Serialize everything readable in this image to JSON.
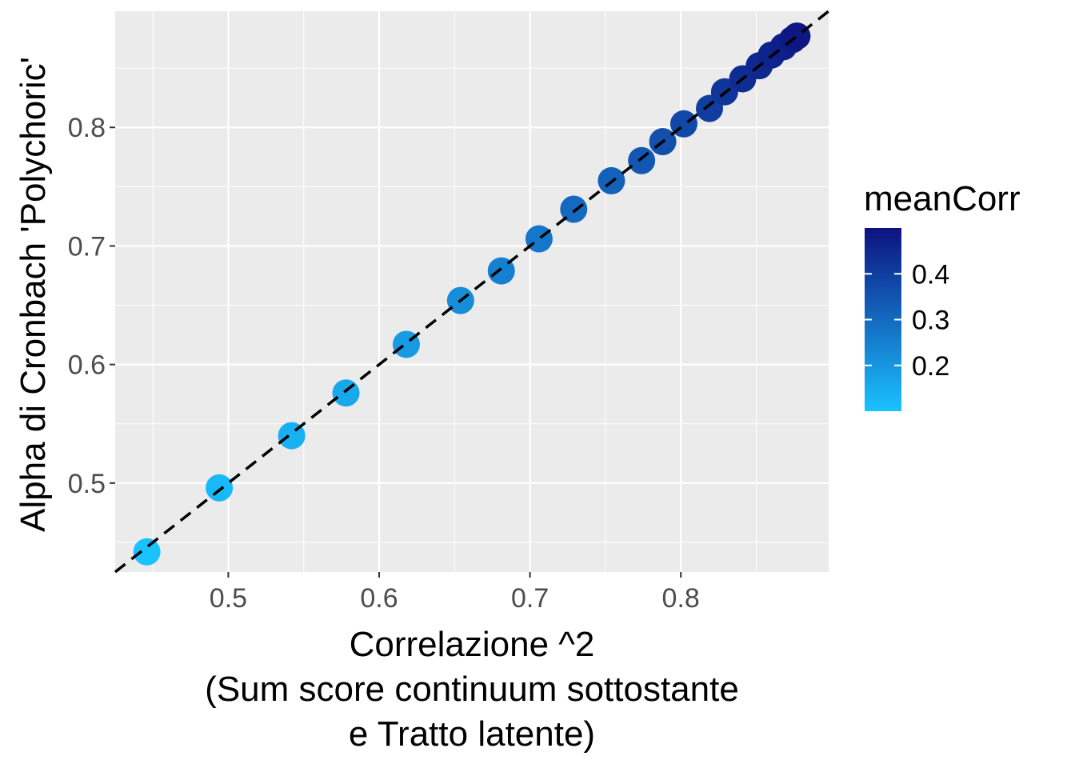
{
  "chart_data": {
    "type": "scatter",
    "title": "",
    "xlabel_lines": [
      "Correlazione ^2",
      "(Sum score continuum sottostante",
      "e Tratto latente)"
    ],
    "ylabel": "Alpha di Cronbach 'Polychoric'",
    "xlim": [
      0.425,
      0.898
    ],
    "ylim": [
      0.425,
      0.898
    ],
    "x_ticks": [
      0.5,
      0.6,
      0.7,
      0.8
    ],
    "x_tick_labels": [
      "0.5",
      "0.6",
      "0.7",
      "0.8"
    ],
    "y_ticks": [
      0.5,
      0.6,
      0.7,
      0.8
    ],
    "y_tick_labels": [
      "0.5",
      "0.6",
      "0.7",
      "0.8"
    ],
    "grid": true,
    "reference_line": {
      "type": "identity",
      "style": "dashed",
      "color": "#000000"
    },
    "legend": {
      "title": "meanCorr",
      "position": "right",
      "type": "colorbar",
      "range": [
        0.1,
        0.5
      ],
      "ticks": [
        0.2,
        0.3,
        0.4
      ],
      "tick_labels": [
        "0.2",
        "0.3",
        "0.4"
      ],
      "low_color": "#1ac2ff",
      "high_color": "#0d1280"
    },
    "points": [
      {
        "x": 0.446,
        "y": 0.442,
        "meanCorr": 0.1
      },
      {
        "x": 0.494,
        "y": 0.496,
        "meanCorr": 0.12
      },
      {
        "x": 0.542,
        "y": 0.54,
        "meanCorr": 0.14
      },
      {
        "x": 0.578,
        "y": 0.576,
        "meanCorr": 0.16
      },
      {
        "x": 0.618,
        "y": 0.617,
        "meanCorr": 0.19
      },
      {
        "x": 0.654,
        "y": 0.654,
        "meanCorr": 0.22
      },
      {
        "x": 0.681,
        "y": 0.679,
        "meanCorr": 0.25
      },
      {
        "x": 0.706,
        "y": 0.706,
        "meanCorr": 0.27
      },
      {
        "x": 0.729,
        "y": 0.731,
        "meanCorr": 0.3
      },
      {
        "x": 0.754,
        "y": 0.755,
        "meanCorr": 0.32
      },
      {
        "x": 0.774,
        "y": 0.772,
        "meanCorr": 0.34
      },
      {
        "x": 0.788,
        "y": 0.788,
        "meanCorr": 0.36
      },
      {
        "x": 0.802,
        "y": 0.803,
        "meanCorr": 0.38
      },
      {
        "x": 0.819,
        "y": 0.816,
        "meanCorr": 0.4
      },
      {
        "x": 0.829,
        "y": 0.83,
        "meanCorr": 0.42
      },
      {
        "x": 0.841,
        "y": 0.841,
        "meanCorr": 0.44
      },
      {
        "x": 0.852,
        "y": 0.852,
        "meanCorr": 0.45
      },
      {
        "x": 0.86,
        "y": 0.861,
        "meanCorr": 0.46
      },
      {
        "x": 0.868,
        "y": 0.868,
        "meanCorr": 0.47
      },
      {
        "x": 0.874,
        "y": 0.874,
        "meanCorr": 0.48
      },
      {
        "x": 0.877,
        "y": 0.877,
        "meanCorr": 0.49
      }
    ]
  }
}
